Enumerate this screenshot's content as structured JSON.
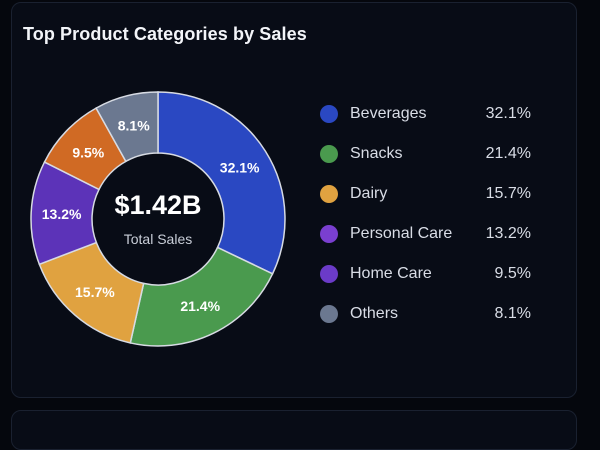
{
  "card": {
    "title": "Top Product Categories by Sales"
  },
  "center": {
    "value": "$1.42B",
    "label": "Total Sales"
  },
  "chart_data": {
    "type": "pie",
    "variant": "donut",
    "title": "Top Product Categories by Sales",
    "categories": [
      "Beverages",
      "Snacks",
      "Dairy",
      "Personal Care",
      "Home Care",
      "Others"
    ],
    "values": [
      32.1,
      21.4,
      15.7,
      13.2,
      9.5,
      8.1
    ],
    "labels": [
      "32.1%",
      "21.4%",
      "15.7%",
      "13.2%",
      "9.5%",
      "8.1%"
    ],
    "colors": [
      "#2a48c2",
      "#4a9a4e",
      "#e0a240",
      "#5c33b8",
      "#d06a24",
      "#6b7890"
    ],
    "legend_colors": [
      "#2a48c2",
      "#4a9a4e",
      "#e0a240",
      "#7a3fd0",
      "#6b3bc8",
      "#6b7890"
    ],
    "unit": "%",
    "legend_position": "right",
    "total": "$1.42B"
  }
}
